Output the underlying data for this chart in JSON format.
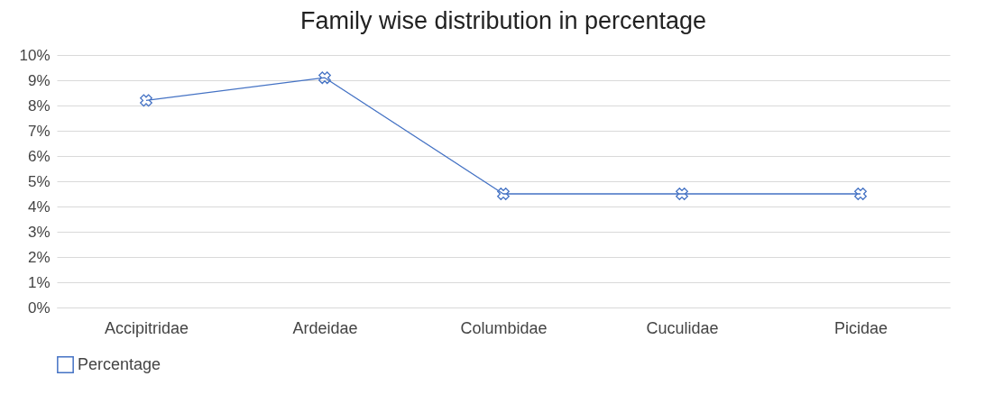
{
  "chart_data": {
    "type": "line",
    "title": "Family wise distribution in percentage",
    "categories": [
      "Accipitridae",
      "Ardeidae",
      "Columbidae",
      "Cuculidae",
      "Picidae"
    ],
    "series": [
      {
        "name": "Percentage",
        "color": "#4472c4",
        "values": [
          8.2,
          9.1,
          4.5,
          4.5,
          4.5
        ]
      }
    ],
    "ylim": [
      0,
      10
    ],
    "yticks": [
      {
        "value": 0,
        "label": "0%"
      },
      {
        "value": 1,
        "label": "1%"
      },
      {
        "value": 2,
        "label": "2%"
      },
      {
        "value": 3,
        "label": "3%"
      },
      {
        "value": 4,
        "label": "4%"
      },
      {
        "value": 5,
        "label": "5%"
      },
      {
        "value": 6,
        "label": "6%"
      },
      {
        "value": 7,
        "label": "7%"
      },
      {
        "value": 8,
        "label": "8%"
      },
      {
        "value": 9,
        "label": "9%"
      },
      {
        "value": 10,
        "label": "10%"
      }
    ],
    "grid": "y",
    "legend": "bottom",
    "marker": "cross",
    "line_style": "solid"
  }
}
